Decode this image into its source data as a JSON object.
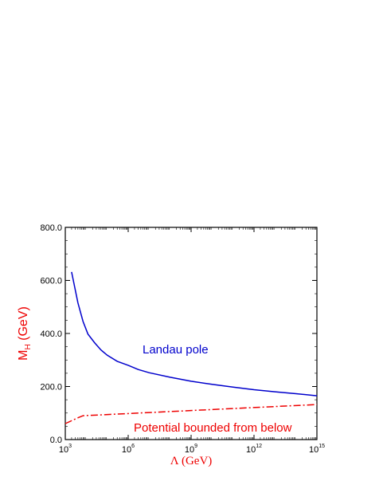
{
  "chart_data": {
    "type": "line",
    "xscale": "log",
    "xlim": [
      1000,
      1000000000000000.0
    ],
    "ylim": [
      0,
      800
    ],
    "grid": false,
    "x_ticks": [
      {
        "base": "10",
        "exp": "3",
        "value": 1000
      },
      {
        "base": "10",
        "exp": "6",
        "value": 1000000
      },
      {
        "base": "10",
        "exp": "9",
        "value": 1000000000
      },
      {
        "base": "10",
        "exp": "12",
        "value": 1000000000000
      },
      {
        "base": "10",
        "exp": "15",
        "value": 1000000000000000
      }
    ],
    "y_ticks": [
      {
        "label": "0.0",
        "value": 0
      },
      {
        "label": "200.0",
        "value": 200
      },
      {
        "label": "400.0",
        "value": 400
      },
      {
        "label": "600.0",
        "value": 600
      },
      {
        "label": "800.0",
        "value": 800
      }
    ],
    "xlabel": "Λ (GeV)",
    "ylabel": {
      "main": "M",
      "sub": "H",
      "unit": " (GeV)"
    },
    "series": [
      {
        "color": "#0000cc",
        "style": "solid",
        "x": [
          2000,
          4000,
          7000,
          12000,
          25000,
          50000,
          100000,
          300000,
          1000000,
          3000000,
          10000000,
          100000000,
          1000000000,
          10000000000,
          100000000000,
          1000000000000,
          10000000000000,
          100000000000000,
          1000000000000000
        ],
        "y": [
          632,
          515,
          445,
          398,
          365,
          338,
          318,
          295,
          280,
          264,
          252,
          235,
          220,
          208,
          198,
          188,
          180,
          173,
          165
        ]
      },
      {
        "color": "#ee0000",
        "style": "dashdot",
        "x": [
          1000,
          4000,
          7000,
          1000000000000000
        ],
        "y": [
          60,
          82,
          90,
          132
        ]
      }
    ],
    "annotations": [
      {
        "text": "Landau pole",
        "color": "#0000cc"
      },
      {
        "text": "Potential bounded from below",
        "color": "#ee0000"
      }
    ]
  }
}
